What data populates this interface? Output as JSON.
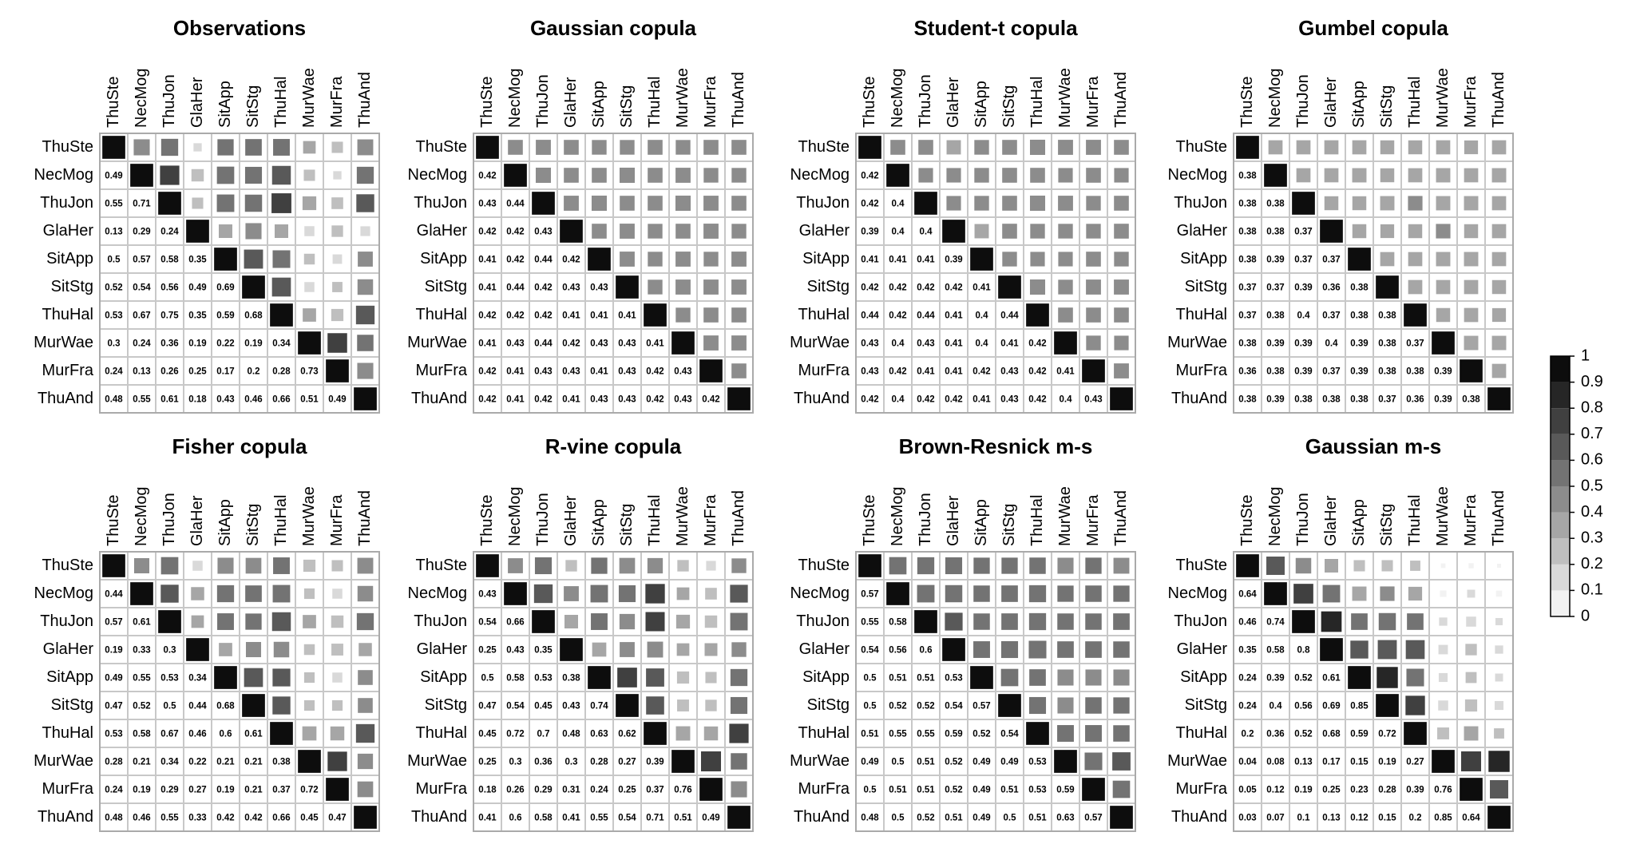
{
  "chart_data": [
    {
      "type": "heatmap",
      "title": "Observations",
      "categories": [
        "ThuSte",
        "NecMog",
        "ThuJon",
        "GlaHer",
        "SitApp",
        "SitStg",
        "ThuHal",
        "MurWae",
        "MurFra",
        "ThuAnd"
      ],
      "values": [
        [
          1
        ],
        [
          0.49,
          1
        ],
        [
          0.55,
          0.71,
          1
        ],
        [
          0.13,
          0.29,
          0.24,
          1
        ],
        [
          0.5,
          0.57,
          0.58,
          0.35,
          1
        ],
        [
          0.52,
          0.54,
          0.56,
          0.49,
          0.69,
          1
        ],
        [
          0.53,
          0.67,
          0.75,
          0.35,
          0.59,
          0.68,
          1
        ],
        [
          0.3,
          0.24,
          0.36,
          0.19,
          0.22,
          0.19,
          0.34,
          1
        ],
        [
          0.24,
          0.13,
          0.26,
          0.25,
          0.17,
          0.2,
          0.28,
          0.73,
          1
        ],
        [
          0.48,
          0.55,
          0.61,
          0.18,
          0.43,
          0.46,
          0.66,
          0.51,
          0.49,
          1
        ]
      ]
    },
    {
      "type": "heatmap",
      "title": "Gaussian copula",
      "categories": [
        "ThuSte",
        "NecMog",
        "ThuJon",
        "GlaHer",
        "SitApp",
        "SitStg",
        "ThuHal",
        "MurWae",
        "MurFra",
        "ThuAnd"
      ],
      "values": [
        [
          1
        ],
        [
          0.42,
          1
        ],
        [
          0.43,
          0.44,
          1
        ],
        [
          0.42,
          0.42,
          0.43,
          1
        ],
        [
          0.41,
          0.42,
          0.44,
          0.42,
          1
        ],
        [
          0.41,
          0.44,
          0.42,
          0.43,
          0.43,
          1
        ],
        [
          0.42,
          0.42,
          0.42,
          0.41,
          0.41,
          0.41,
          1
        ],
        [
          0.41,
          0.43,
          0.44,
          0.42,
          0.43,
          0.43,
          0.41,
          1
        ],
        [
          0.42,
          0.41,
          0.43,
          0.43,
          0.41,
          0.43,
          0.42,
          0.43,
          1
        ],
        [
          0.42,
          0.41,
          0.42,
          0.41,
          0.43,
          0.43,
          0.42,
          0.43,
          0.42,
          1
        ]
      ]
    },
    {
      "type": "heatmap",
      "title": "Student-t copula",
      "categories": [
        "ThuSte",
        "NecMog",
        "ThuJon",
        "GlaHer",
        "SitApp",
        "SitStg",
        "ThuHal",
        "MurWae",
        "MurFra",
        "ThuAnd"
      ],
      "values": [
        [
          1
        ],
        [
          0.42,
          1
        ],
        [
          0.42,
          0.4,
          1
        ],
        [
          0.39,
          0.4,
          0.4,
          1
        ],
        [
          0.41,
          0.41,
          0.41,
          0.39,
          1
        ],
        [
          0.42,
          0.42,
          0.42,
          0.42,
          0.41,
          1
        ],
        [
          0.44,
          0.42,
          0.44,
          0.41,
          0.4,
          0.44,
          1
        ],
        [
          0.43,
          0.4,
          0.43,
          0.41,
          0.4,
          0.41,
          0.42,
          1
        ],
        [
          0.43,
          0.42,
          0.41,
          0.41,
          0.42,
          0.43,
          0.42,
          0.41,
          1
        ],
        [
          0.42,
          0.4,
          0.42,
          0.42,
          0.41,
          0.43,
          0.42,
          0.4,
          0.43,
          1
        ]
      ]
    },
    {
      "type": "heatmap",
      "title": "Gumbel copula",
      "categories": [
        "ThuSte",
        "NecMog",
        "ThuJon",
        "GlaHer",
        "SitApp",
        "SitStg",
        "ThuHal",
        "MurWae",
        "MurFra",
        "ThuAnd"
      ],
      "values": [
        [
          1
        ],
        [
          0.38,
          1
        ],
        [
          0.38,
          0.38,
          1
        ],
        [
          0.38,
          0.38,
          0.37,
          1
        ],
        [
          0.38,
          0.39,
          0.37,
          0.37,
          1
        ],
        [
          0.37,
          0.37,
          0.39,
          0.36,
          0.38,
          1
        ],
        [
          0.37,
          0.38,
          0.4,
          0.37,
          0.38,
          0.38,
          1
        ],
        [
          0.38,
          0.39,
          0.39,
          0.4,
          0.39,
          0.38,
          0.37,
          1
        ],
        [
          0.36,
          0.38,
          0.39,
          0.37,
          0.39,
          0.38,
          0.38,
          0.39,
          1
        ],
        [
          0.38,
          0.39,
          0.38,
          0.38,
          0.38,
          0.37,
          0.36,
          0.39,
          0.38,
          1
        ]
      ]
    },
    {
      "type": "heatmap",
      "title": "Fisher copula",
      "categories": [
        "ThuSte",
        "NecMog",
        "ThuJon",
        "GlaHer",
        "SitApp",
        "SitStg",
        "ThuHal",
        "MurWae",
        "MurFra",
        "ThuAnd"
      ],
      "values": [
        [
          1
        ],
        [
          0.44,
          1
        ],
        [
          0.57,
          0.61,
          1
        ],
        [
          0.19,
          0.33,
          0.3,
          1
        ],
        [
          0.49,
          0.55,
          0.53,
          0.34,
          1
        ],
        [
          0.47,
          0.52,
          0.5,
          0.44,
          0.68,
          1
        ],
        [
          0.53,
          0.58,
          0.67,
          0.46,
          0.6,
          0.61,
          1
        ],
        [
          0.28,
          0.21,
          0.34,
          0.22,
          0.21,
          0.21,
          0.38,
          1
        ],
        [
          0.24,
          0.19,
          0.29,
          0.27,
          0.19,
          0.21,
          0.37,
          0.72,
          1
        ],
        [
          0.48,
          0.46,
          0.55,
          0.33,
          0.42,
          0.42,
          0.66,
          0.45,
          0.47,
          1
        ]
      ]
    },
    {
      "type": "heatmap",
      "title": "R-vine copula",
      "categories": [
        "ThuSte",
        "NecMog",
        "ThuJon",
        "GlaHer",
        "SitApp",
        "SitStg",
        "ThuHal",
        "MurWae",
        "MurFra",
        "ThuAnd"
      ],
      "values": [
        [
          1
        ],
        [
          0.43,
          1
        ],
        [
          0.54,
          0.66,
          1
        ],
        [
          0.25,
          0.43,
          0.35,
          1
        ],
        [
          0.5,
          0.58,
          0.53,
          0.38,
          1
        ],
        [
          0.47,
          0.54,
          0.45,
          0.43,
          0.74,
          1
        ],
        [
          0.45,
          0.72,
          0.7,
          0.48,
          0.63,
          0.62,
          1
        ],
        [
          0.25,
          0.3,
          0.36,
          0.3,
          0.28,
          0.27,
          0.39,
          1
        ],
        [
          0.18,
          0.26,
          0.29,
          0.31,
          0.24,
          0.25,
          0.37,
          0.76,
          1
        ],
        [
          0.41,
          0.6,
          0.58,
          0.41,
          0.55,
          0.54,
          0.71,
          0.51,
          0.49,
          1
        ]
      ]
    },
    {
      "type": "heatmap",
      "title": "Brown-Resnick m-s",
      "categories": [
        "ThuSte",
        "NecMog",
        "ThuJon",
        "GlaHer",
        "SitApp",
        "SitStg",
        "ThuHal",
        "MurWae",
        "MurFra",
        "ThuAnd"
      ],
      "values": [
        [
          1
        ],
        [
          0.57,
          1
        ],
        [
          0.55,
          0.58,
          1
        ],
        [
          0.54,
          0.56,
          0.6,
          1
        ],
        [
          0.5,
          0.51,
          0.51,
          0.53,
          1
        ],
        [
          0.5,
          0.52,
          0.52,
          0.54,
          0.57,
          1
        ],
        [
          0.51,
          0.55,
          0.55,
          0.59,
          0.52,
          0.54,
          1
        ],
        [
          0.49,
          0.5,
          0.51,
          0.52,
          0.49,
          0.49,
          0.53,
          1
        ],
        [
          0.5,
          0.51,
          0.51,
          0.52,
          0.49,
          0.51,
          0.53,
          0.59,
          1
        ],
        [
          0.48,
          0.5,
          0.52,
          0.51,
          0.49,
          0.5,
          0.51,
          0.63,
          0.57,
          1
        ]
      ]
    },
    {
      "type": "heatmap",
      "title": "Gaussian m-s",
      "categories": [
        "ThuSte",
        "NecMog",
        "ThuJon",
        "GlaHer",
        "SitApp",
        "SitStg",
        "ThuHal",
        "MurWae",
        "MurFra",
        "ThuAnd"
      ],
      "values": [
        [
          1
        ],
        [
          0.64,
          1
        ],
        [
          0.46,
          0.74,
          1
        ],
        [
          0.35,
          0.58,
          0.8,
          1
        ],
        [
          0.24,
          0.39,
          0.52,
          0.61,
          1
        ],
        [
          0.24,
          0.4,
          0.56,
          0.69,
          0.85,
          1
        ],
        [
          0.2,
          0.36,
          0.52,
          0.68,
          0.59,
          0.72,
          1
        ],
        [
          0.04,
          0.08,
          0.13,
          0.17,
          0.15,
          0.19,
          0.27,
          1
        ],
        [
          0.05,
          0.12,
          0.19,
          0.25,
          0.23,
          0.28,
          0.39,
          0.76,
          1
        ],
        [
          0.03,
          0.07,
          0.1,
          0.13,
          0.12,
          0.15,
          0.2,
          0.85,
          0.64,
          1
        ]
      ]
    }
  ],
  "colorbar": {
    "lim": [
      0,
      1
    ],
    "ticks": [
      0,
      0.1,
      0.2,
      0.3,
      0.4,
      0.5,
      0.6,
      0.7,
      0.8,
      0.9,
      1
    ]
  }
}
